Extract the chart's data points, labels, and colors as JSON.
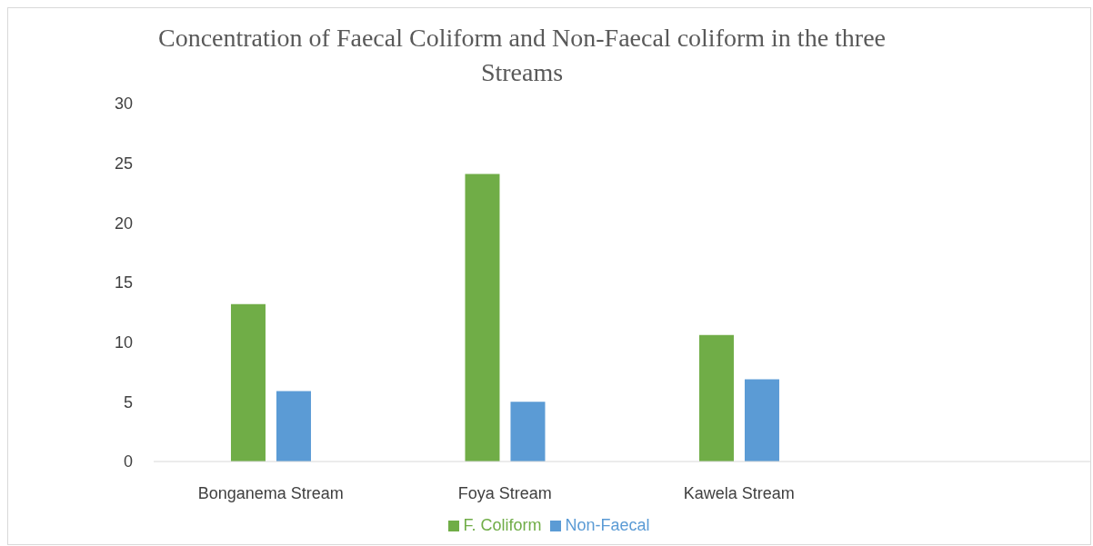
{
  "chart_data": {
    "type": "bar",
    "title": "Concentration of Faecal Coliform and Non-Faecal coliform in the three Streams",
    "categories": [
      "Bonganema Stream",
      "Foya Stream",
      "Kawela Stream",
      null
    ],
    "series": [
      {
        "name": "F. Coliform",
        "color": "#70ad47",
        "values": [
          13.2,
          24.1,
          10.6,
          null
        ]
      },
      {
        "name": "Non-Faecal",
        "color": "#5b9bd5",
        "values": [
          5.9,
          5.0,
          6.9,
          null
        ]
      }
    ],
    "ylim": [
      0,
      30
    ],
    "yticks": [
      0,
      5,
      10,
      15,
      20,
      25,
      30
    ],
    "grid": false,
    "legend": "bottom"
  }
}
